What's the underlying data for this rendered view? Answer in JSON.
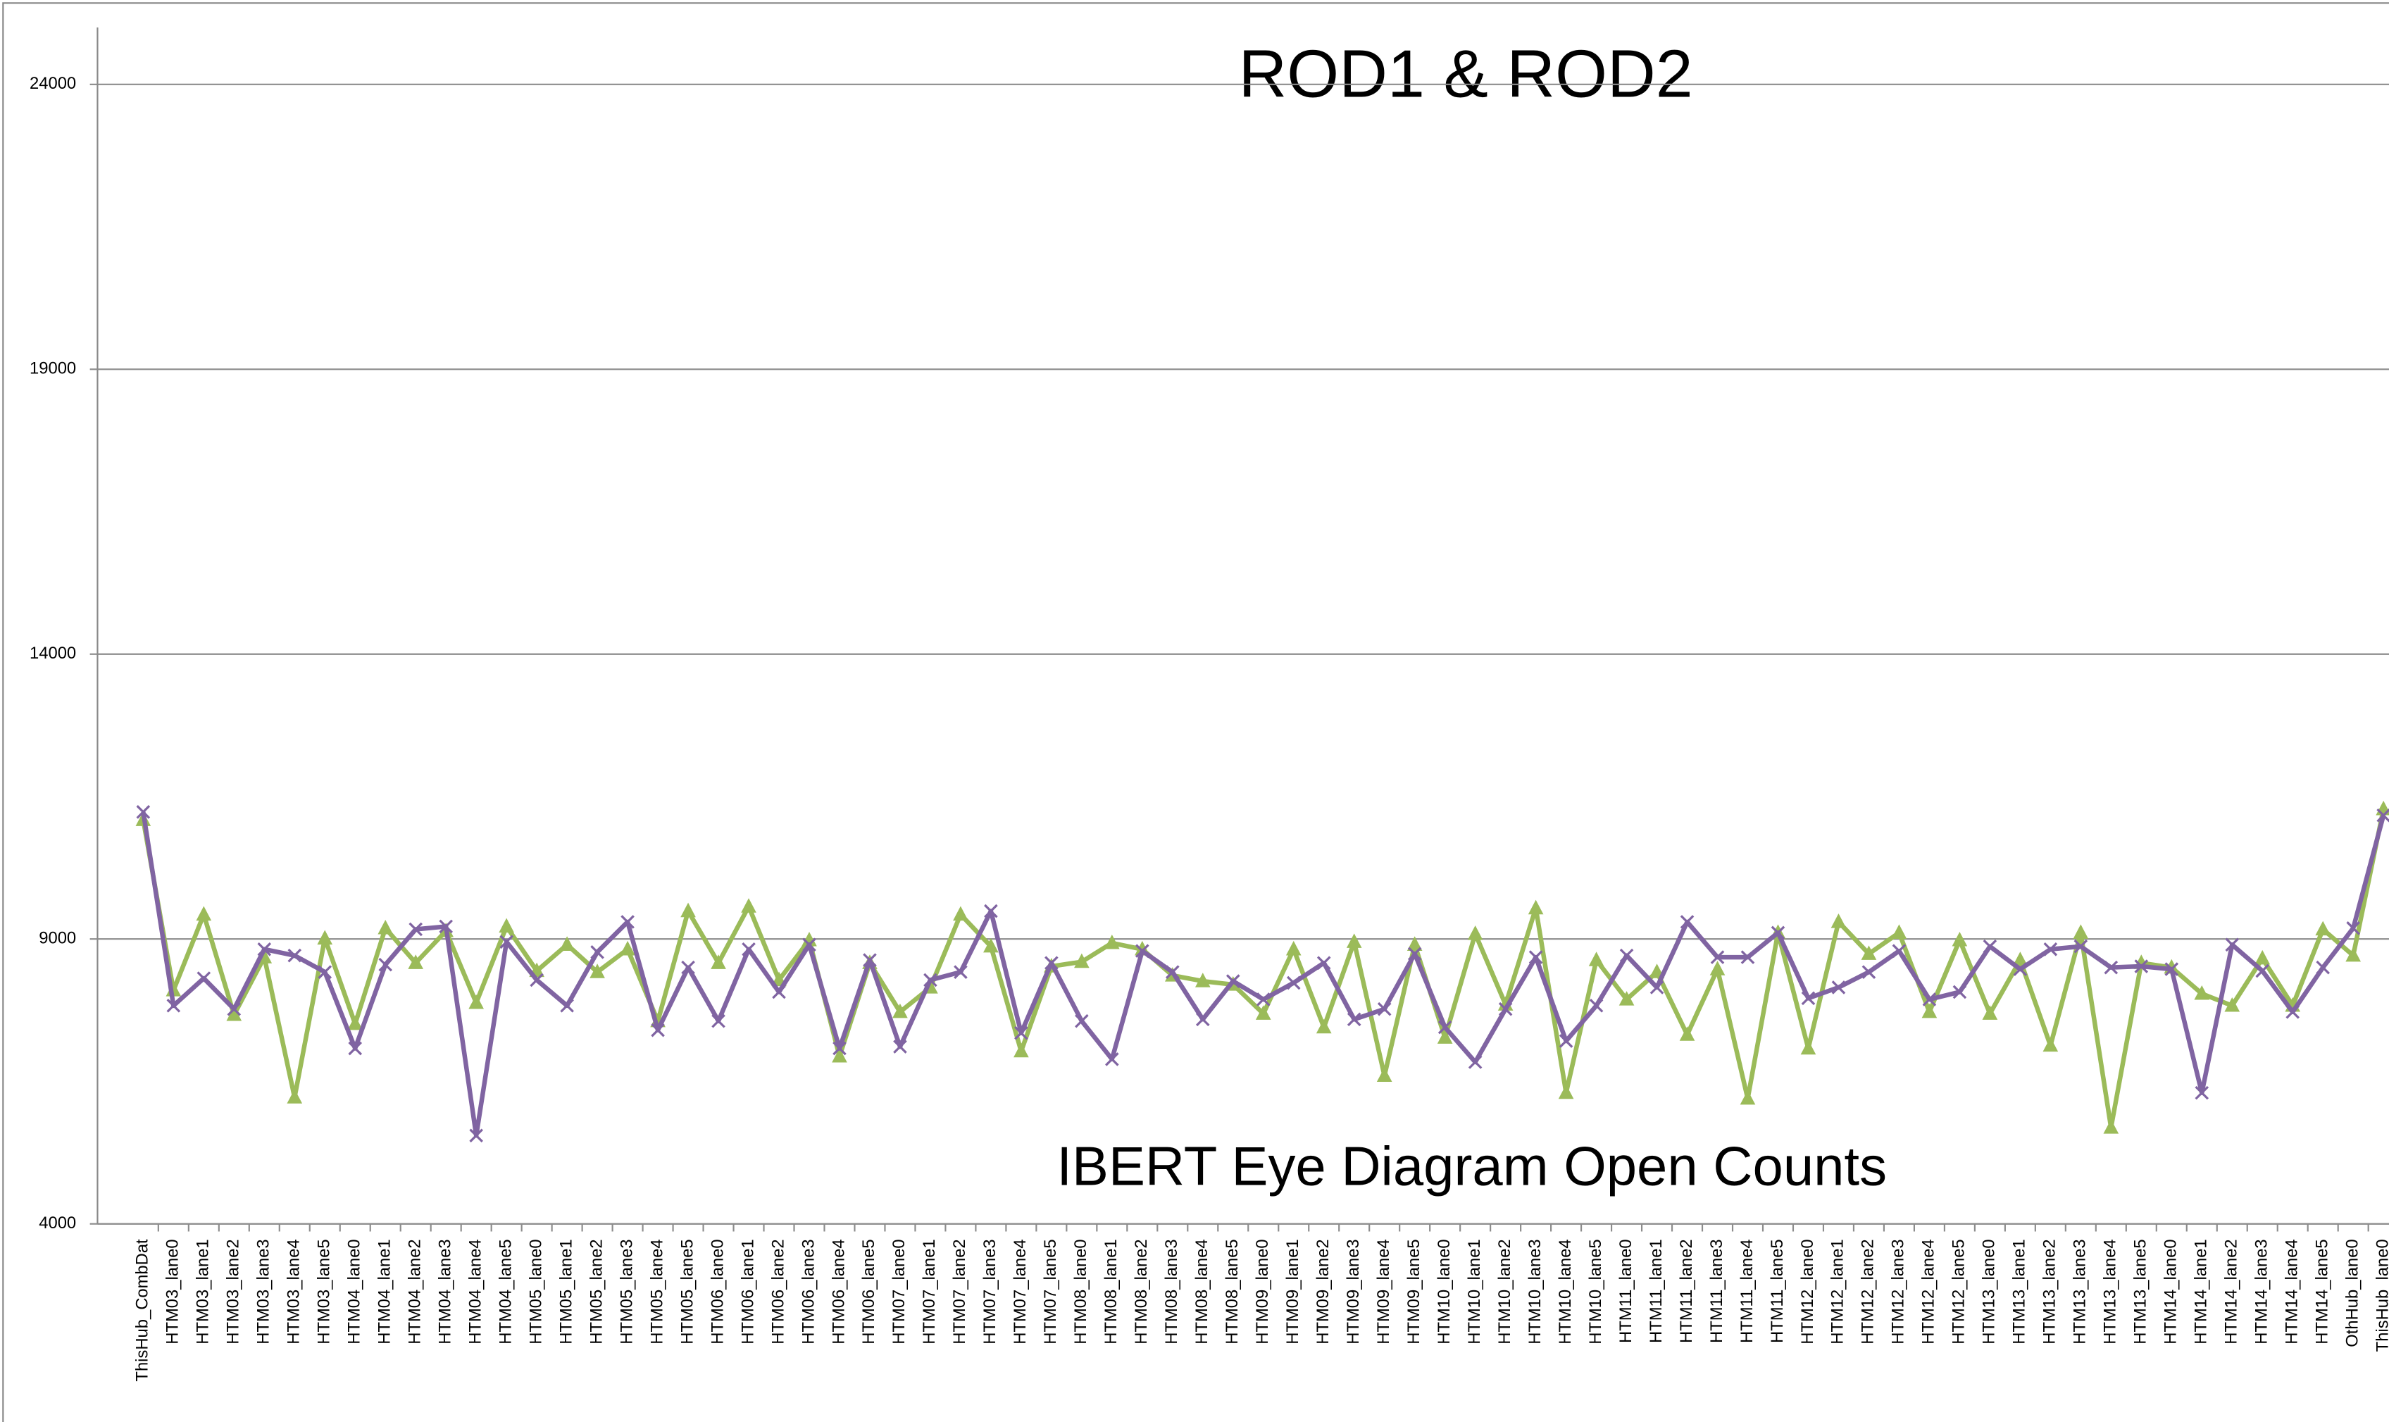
{
  "chart_data": {
    "type": "line",
    "title": "ROD1 & ROD2",
    "annotation": "IBERT Eye Diagram Open Counts",
    "categories": [
      "ThisHub_CombDat",
      "HTM03_lane0",
      "HTM03_lane1",
      "HTM03_lane2",
      "HTM03_lane3",
      "HTM03_lane4",
      "HTM03_lane5",
      "HTM04_lane0",
      "HTM04_lane1",
      "HTM04_lane2",
      "HTM04_lane3",
      "HTM04_lane4",
      "HTM04_lane5",
      "HTM05_lane0",
      "HTM05_lane1",
      "HTM05_lane2",
      "HTM05_lane3",
      "HTM05_lane4",
      "HTM05_lane5",
      "HTM06_lane0",
      "HTM06_lane1",
      "HTM06_lane2",
      "HTM06_lane3",
      "HTM06_lane4",
      "HTM06_lane5",
      "HTM07_lane0",
      "HTM07_lane1",
      "HTM07_lane2",
      "HTM07_lane3",
      "HTM07_lane4",
      "HTM07_lane5",
      "HTM08_lane0",
      "HTM08_lane1",
      "HTM08_lane2",
      "HTM08_lane3",
      "HTM08_lane4",
      "HTM08_lane5",
      "HTM09_lane0",
      "HTM09_lane1",
      "HTM09_lane2",
      "HTM09_lane3",
      "HTM09_lane4",
      "HTM09_lane5",
      "HTM10_lane0",
      "HTM10_lane1",
      "HTM10_lane2",
      "HTM10_lane3",
      "HTM10_lane4",
      "HTM10_lane5",
      "HTM11_lane0",
      "HTM11_lane1",
      "HTM11_lane2",
      "HTM11_lane3",
      "HTM11_lane4",
      "HTM11_lane5",
      "HTM12_lane0",
      "HTM12_lane1",
      "HTM12_lane2",
      "HTM12_lane3",
      "HTM12_lane4",
      "HTM12_lane5",
      "HTM13_lane0",
      "HTM13_lane1",
      "HTM13_lane2",
      "HTM13_lane3",
      "HTM13_lane4",
      "HTM13_lane5",
      "HTM14_lane0",
      "HTM14_lane1",
      "HTM14_lane2",
      "HTM14_lane3",
      "HTM14_lane4",
      "HTM14_lane5",
      "OthHub_lane0",
      "ThisHub_lane0"
    ],
    "series": [
      {
        "color": "#9bbb59",
        "marker": "triangle",
        "values": [
          11090,
          8100,
          9430,
          7670,
          8680,
          6220,
          9010,
          7510,
          9190,
          8580,
          9140,
          7880,
          9220,
          8440,
          8900,
          8420,
          8820,
          7560,
          9490,
          8580,
          9570,
          8280,
          8980,
          6940,
          8580,
          7720,
          8150,
          9430,
          8870,
          7030,
          8520,
          8600,
          8930,
          8820,
          8360,
          8260,
          8200,
          7690,
          8820,
          7450,
          8950,
          6600,
          8900,
          7270,
          9090,
          7850,
          9540,
          6300,
          8630,
          7940,
          8420,
          7320,
          8470,
          6200,
          9110,
          7080,
          9300,
          8740,
          9110,
          7720,
          8980,
          7690,
          8630,
          7130,
          9110,
          5690,
          8580,
          8500,
          8040,
          7830,
          8660,
          7830,
          9170,
          8710,
          11280
        ]
      },
      {
        "color": "#8064a2",
        "marker": "x",
        "values": [
          11230,
          7830,
          8310,
          7770,
          8820,
          8710,
          8420,
          7080,
          8550,
          9170,
          9220,
          5550,
          8950,
          8280,
          7830,
          8770,
          9300,
          7400,
          8500,
          7560,
          8820,
          8070,
          8900,
          7080,
          8630,
          7110,
          8280,
          8420,
          9490,
          7350,
          8580,
          7560,
          6890,
          8790,
          8420,
          7590,
          8260,
          7940,
          8230,
          8580,
          7590,
          7770,
          8740,
          7450,
          6840,
          7770,
          8680,
          7210,
          7830,
          8710,
          8150,
          9300,
          8680,
          8680,
          9110,
          7960,
          8150,
          8420,
          8790,
          7940,
          8070,
          8870,
          8470,
          8820,
          8870,
          8500,
          8520,
          8470,
          6300,
          8900,
          8440,
          7720,
          8500,
          9190,
          11170
        ]
      }
    ],
    "ylim": [
      4000,
      25000
    ],
    "yticks": [
      4000,
      9000,
      14000,
      19000,
      24000
    ],
    "grid": true
  }
}
